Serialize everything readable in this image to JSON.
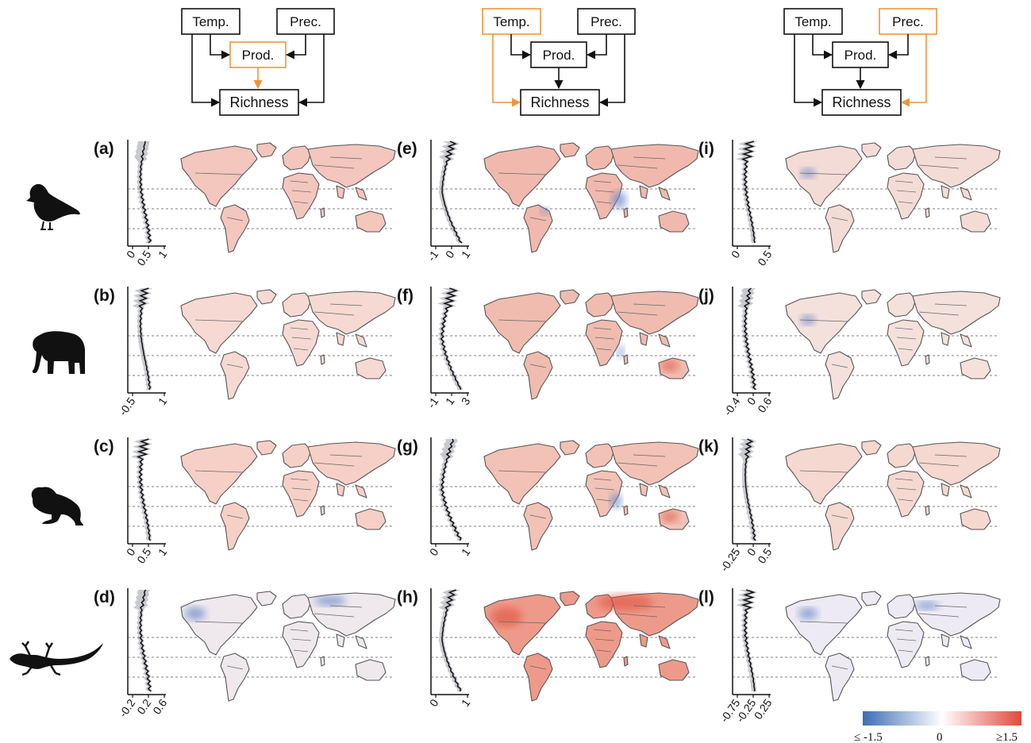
{
  "diagrams": [
    {
      "temp": "Temp.",
      "prec": "Prec.",
      "prod": "Prod.",
      "richness": "Richness",
      "highlight": "productivity"
    },
    {
      "temp": "Temp.",
      "prec": "Prec.",
      "prod": "Prod.",
      "richness": "Richness",
      "highlight": "temperature"
    },
    {
      "temp": "Temp.",
      "prec": "Prec.",
      "prod": "Prod.",
      "richness": "Richness",
      "highlight": "precipitation"
    }
  ],
  "highlight_color": "#F0953A",
  "taxa_icons": [
    "bird-icon",
    "elephant-icon",
    "frog-icon",
    "lizard-icon"
  ],
  "panels": [
    {
      "label": "(a)",
      "col": 0,
      "row": 0,
      "ticks": [
        "0",
        "0.5",
        "1"
      ]
    },
    {
      "label": "(b)",
      "col": 0,
      "row": 1,
      "ticks": [
        "-0.5",
        "1"
      ]
    },
    {
      "label": "(c)",
      "col": 0,
      "row": 2,
      "ticks": [
        "0",
        "0.5",
        "1"
      ]
    },
    {
      "label": "(d)",
      "col": 0,
      "row": 3,
      "ticks": [
        "-0.2",
        "0.2",
        "0.6"
      ]
    },
    {
      "label": "(e)",
      "col": 1,
      "row": 0,
      "ticks": [
        "-1",
        "0",
        "1"
      ]
    },
    {
      "label": "(f)",
      "col": 1,
      "row": 1,
      "ticks": [
        "-1",
        "1",
        "3"
      ]
    },
    {
      "label": "(g)",
      "col": 1,
      "row": 2,
      "ticks": [
        "0",
        "1"
      ]
    },
    {
      "label": "(h)",
      "col": 1,
      "row": 3,
      "ticks": [
        "0",
        "1"
      ]
    },
    {
      "label": "(i)",
      "col": 2,
      "row": 0,
      "ticks": [
        "0",
        "0.5"
      ]
    },
    {
      "label": "(j)",
      "col": 2,
      "row": 1,
      "ticks": [
        "-0.4",
        "0",
        "0.6"
      ]
    },
    {
      "label": "(k)",
      "col": 2,
      "row": 2,
      "ticks": [
        "-0.25",
        "0",
        "0.5"
      ]
    },
    {
      "label": "(l)",
      "col": 2,
      "row": 3,
      "ticks": [
        "-0.75",
        "-0.25",
        "0.25"
      ]
    }
  ],
  "colorbar": {
    "min_label": "≤ -1.5",
    "mid_label": "0",
    "max_label": "≥1.5",
    "colors": [
      "#3C6DB5",
      "#FFFFFF",
      "#E2483C"
    ]
  }
}
